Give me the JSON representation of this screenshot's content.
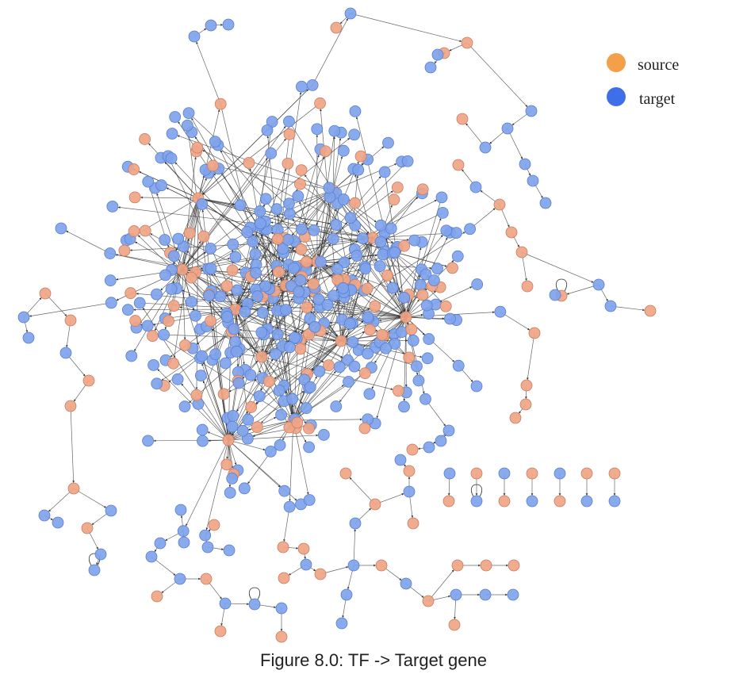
{
  "figure": {
    "caption": "Figure 8.0: TF -> Target gene"
  },
  "legend": {
    "items": [
      {
        "label": "source",
        "color": "#F4A04A"
      },
      {
        "label": "target",
        "color": "#3F6FE8"
      }
    ]
  },
  "graph": {
    "node_colors": {
      "source": "#F0A585",
      "source_stroke": "#C77E62",
      "target": "#7FA3EC",
      "target_stroke": "#5A7FCF"
    },
    "edge_color": "#333333"
  }
}
